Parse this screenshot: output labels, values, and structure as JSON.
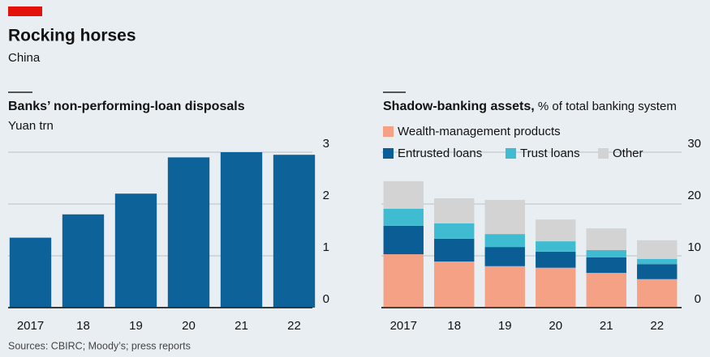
{
  "title": "Rocking horses",
  "subtitle": "China",
  "source": "Sources: CBIRC; Moody’s; press reports",
  "chart_data": [
    {
      "type": "bar",
      "title": "Banks’ non-performing-loan disposals",
      "subtitle": "Yuan trn",
      "categories": [
        "2017",
        "18",
        "19",
        "20",
        "21",
        "22"
      ],
      "values": [
        1.35,
        1.8,
        2.2,
        2.9,
        3.0,
        2.95
      ],
      "color": "#0d6399",
      "ylim": [
        0,
        3
      ],
      "yticks": [
        0,
        1,
        2,
        3
      ],
      "grid": true
    },
    {
      "type": "stacked_bar",
      "title": "Shadow-banking assets,",
      "subtitle": "% of total banking system",
      "categories": [
        "2017",
        "18",
        "19",
        "20",
        "21",
        "22"
      ],
      "series": [
        {
          "name": "Wealth-management products",
          "color": "#f5a186",
          "values": [
            10.3,
            8.9,
            8.0,
            7.7,
            6.7,
            5.5
          ]
        },
        {
          "name": "Entrusted loans",
          "color": "#0b5d96",
          "values": [
            5.5,
            4.4,
            3.7,
            3.1,
            3.0,
            2.9
          ]
        },
        {
          "name": "Trust loans",
          "color": "#3fbcd1",
          "values": [
            3.3,
            2.95,
            2.5,
            2.0,
            1.4,
            1.0
          ]
        },
        {
          "name": "Other",
          "color": "#d3d3d3",
          "values": [
            5.3,
            4.85,
            6.6,
            4.2,
            4.2,
            3.6
          ]
        }
      ],
      "ylim": [
        0,
        30
      ],
      "yticks": [
        0,
        10,
        20,
        30
      ],
      "grid": true
    }
  ]
}
